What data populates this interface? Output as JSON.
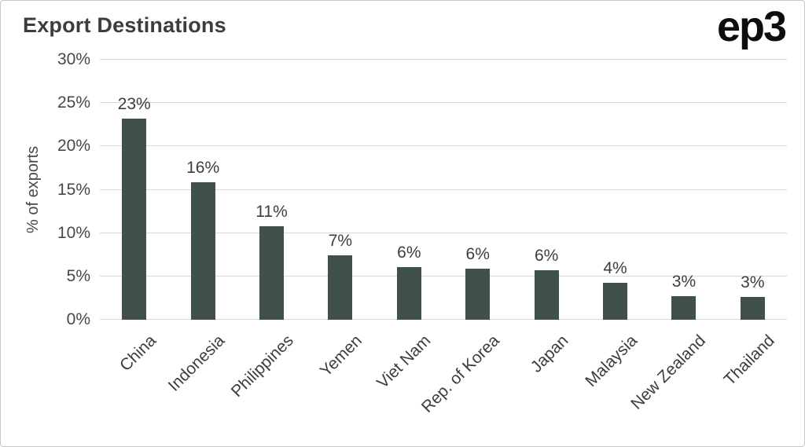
{
  "branding": {
    "logo_text": "ep3"
  },
  "chart_data": {
    "type": "bar",
    "title": "Export Destinations",
    "ylabel": "% of exports",
    "xlabel": "",
    "categories": [
      "China",
      "Indonesia",
      "Philippines",
      "Yemen",
      "Viet Nam",
      "Rep. of Korea",
      "Japan",
      "Malaysia",
      "New Zealand",
      "Thailand"
    ],
    "values": [
      23.2,
      15.9,
      10.8,
      7.4,
      6.1,
      5.9,
      5.7,
      4.3,
      2.7,
      2.6
    ],
    "value_labels": [
      "23%",
      "16%",
      "11%",
      "7%",
      "6%",
      "6%",
      "6%",
      "4%",
      "3%",
      "3%"
    ],
    "ylim": [
      0,
      30
    ],
    "yticks": [
      0,
      5,
      10,
      15,
      20,
      25,
      30
    ],
    "ytick_labels": [
      "0%",
      "5%",
      "10%",
      "15%",
      "20%",
      "25%",
      "30%"
    ],
    "grid": true,
    "legend": "none",
    "bar_color": "#40504c",
    "colors": {
      "bar": "#40504c",
      "title_text": "#3d3d3d",
      "axis_text": "#474747",
      "gridline": "#d9d9d9",
      "background": "#ffffff",
      "logo_text": "#0d0d0d"
    }
  }
}
